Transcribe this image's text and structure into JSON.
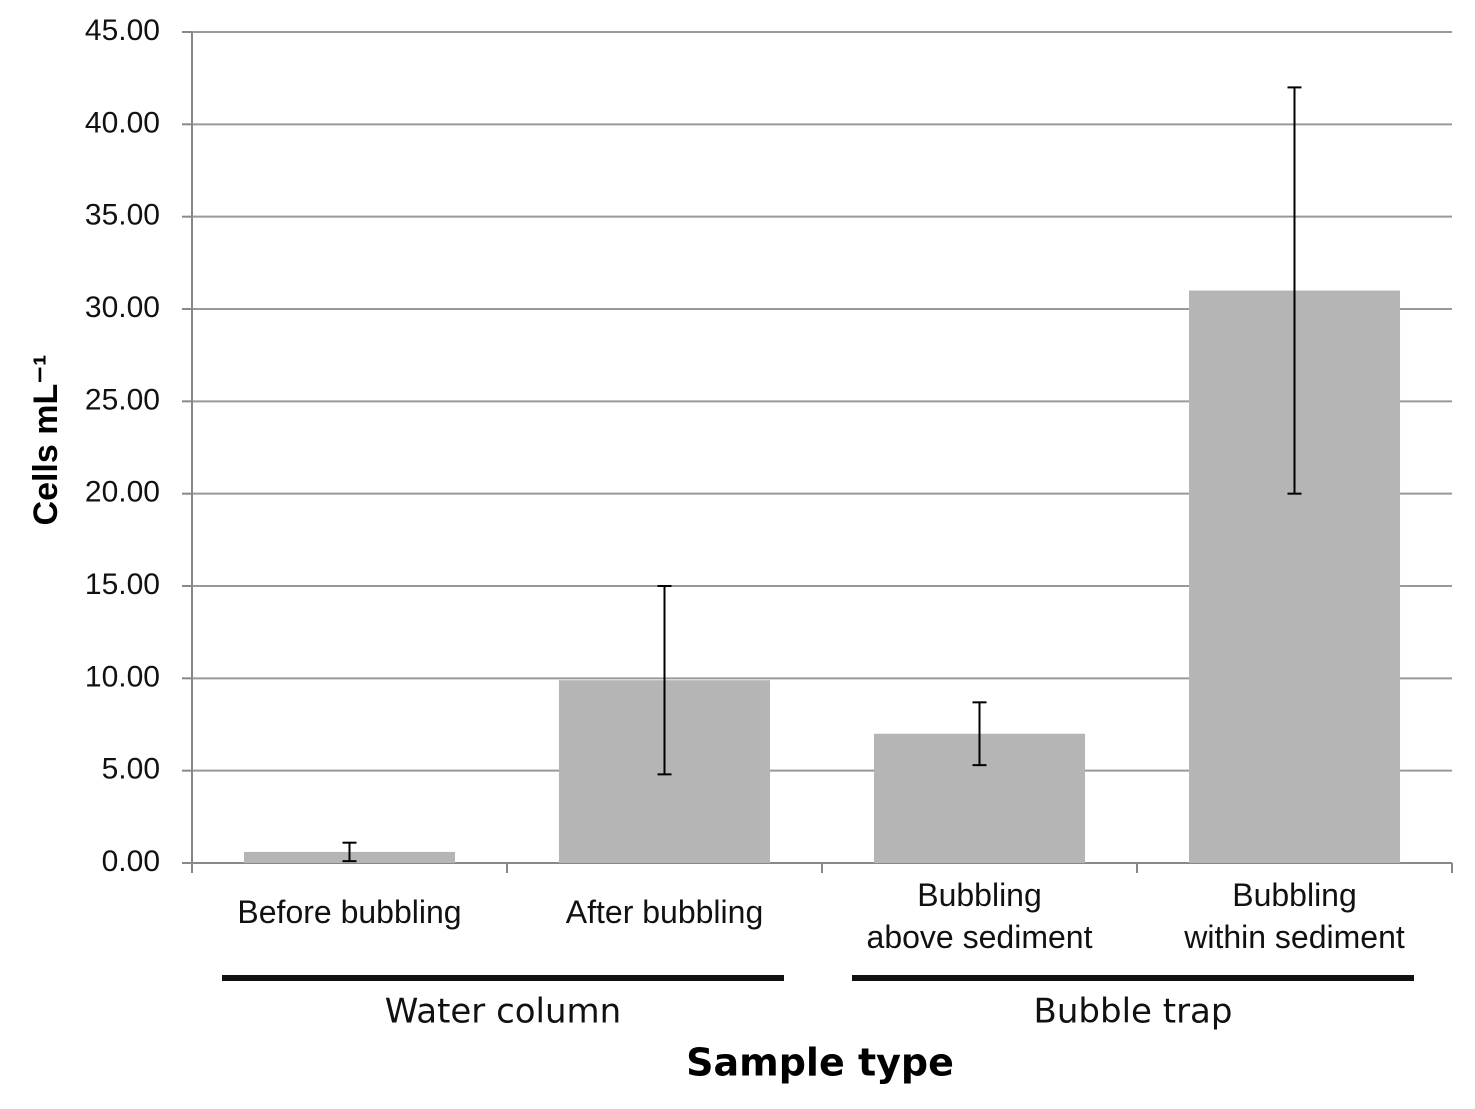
{
  "chart_data": {
    "type": "bar",
    "x_label": "Sample type",
    "y_label": "Cells mL⁻¹",
    "categories": [
      "Before bubbling",
      "After bubbling",
      "Bubbling\nabove sediment",
      "Bubbling\nwithin sediment"
    ],
    "values": [
      0.6,
      9.9,
      7.0,
      31.0
    ],
    "errors": [
      0.5,
      5.1,
      1.7,
      11.0
    ],
    "groups": [
      {
        "name": "Water column",
        "span": 2
      },
      {
        "name": "Bubble trap",
        "span": 2
      }
    ],
    "color": "#b4b5b4",
    "ylim": [
      0,
      45
    ],
    "yticks": [
      {
        "value": 0,
        "label": "0.00"
      },
      {
        "value": 5,
        "label": "5.00"
      },
      {
        "value": 10,
        "label": "10.00"
      },
      {
        "value": 15,
        "label": "15.00"
      },
      {
        "value": 20,
        "label": "20.00"
      },
      {
        "value": 25,
        "label": "25.00"
      },
      {
        "value": 30,
        "label": "30.00"
      },
      {
        "value": 35,
        "label": "35.00"
      },
      {
        "value": 40,
        "label": "40.00"
      },
      {
        "value": 45,
        "label": "45.00"
      }
    ],
    "grid": true
  }
}
